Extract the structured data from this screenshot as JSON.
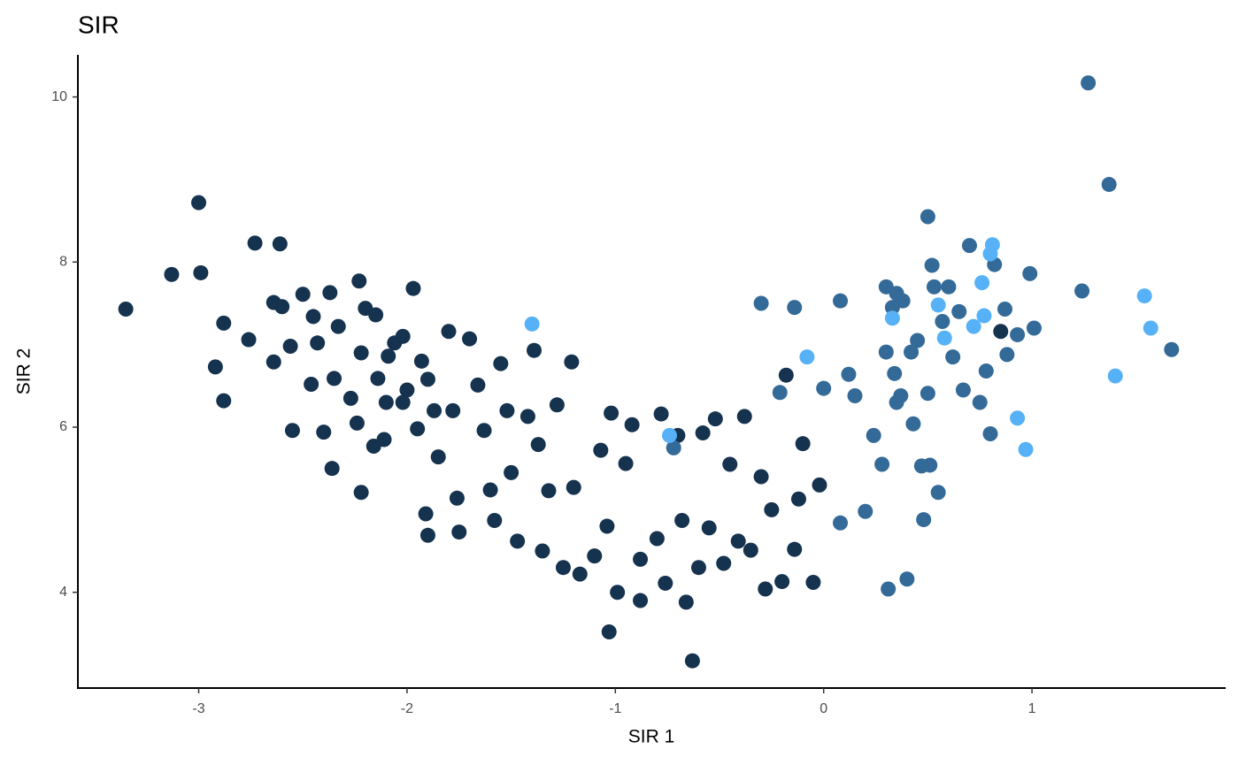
{
  "chart_data": {
    "type": "scatter",
    "title": "SIR",
    "x_label": "SIR 1",
    "y_label": "SIR 2",
    "xlim": [
      -3.58,
      1.93
    ],
    "ylim": [
      2.84,
      10.51
    ],
    "xticks": [
      -3,
      -2,
      -1,
      0,
      1
    ],
    "yticks": [
      4,
      6,
      8,
      10
    ],
    "grid": false,
    "series": [
      {
        "color": "#15324f",
        "x": [
          -3.35,
          -3.13,
          -3.0,
          -2.99,
          -2.92,
          -2.88,
          -2.88,
          -2.76,
          -2.73,
          -2.61,
          -2.64,
          -2.6,
          -2.64,
          -2.56,
          -2.55,
          -2.5,
          -2.45,
          -2.46,
          -2.43,
          -2.37,
          -2.35,
          -2.33,
          -2.4,
          -2.36,
          -2.27,
          -2.23,
          -2.22,
          -2.24,
          -2.2,
          -2.22,
          -2.15,
          -2.14,
          -2.16,
          -2.1,
          -2.09,
          -2.11,
          -2.06,
          -2.02,
          -2.0,
          -2.02,
          -1.97,
          -1.93,
          -1.95,
          -1.9,
          -1.91,
          -1.9,
          -1.87,
          -1.85,
          -1.8,
          -1.78,
          -1.76,
          -1.75,
          -1.7,
          -1.66,
          -1.63,
          -1.6,
          -1.58,
          -1.55,
          -1.52,
          -1.5,
          -1.47,
          -1.42,
          -1.39,
          -1.37,
          -1.35,
          -1.32,
          -1.28,
          -1.25,
          -1.21,
          -1.2,
          -1.17,
          -1.1,
          -1.07,
          -1.04,
          -1.03,
          -1.02,
          -0.99,
          -0.95,
          -0.92,
          -0.88,
          -0.88,
          -0.8,
          -0.78,
          -0.76,
          -0.7,
          -0.68,
          -0.66,
          -0.63,
          -0.6,
          -0.58,
          -0.55,
          -0.52,
          -0.48,
          -0.45,
          -0.41,
          -0.38,
          -0.35,
          -0.3,
          -0.28,
          -0.25,
          -0.2,
          -0.18,
          -0.14,
          -0.12,
          -0.1,
          -0.05,
          -0.02,
          0.85
        ],
        "y": [
          7.43,
          7.85,
          8.72,
          7.87,
          6.73,
          7.26,
          6.32,
          7.06,
          8.23,
          8.22,
          7.51,
          7.46,
          6.79,
          6.98,
          5.96,
          7.61,
          7.34,
          6.52,
          7.02,
          7.63,
          6.59,
          7.22,
          5.94,
          5.5,
          6.35,
          7.77,
          6.9,
          6.05,
          7.44,
          5.21,
          7.36,
          6.59,
          5.77,
          6.3,
          6.86,
          5.85,
          7.02,
          7.1,
          6.45,
          6.3,
          7.68,
          6.8,
          5.98,
          6.58,
          4.95,
          4.69,
          6.2,
          5.64,
          7.16,
          6.2,
          5.14,
          4.73,
          7.07,
          6.51,
          5.96,
          5.24,
          4.87,
          6.77,
          6.2,
          5.45,
          4.62,
          6.13,
          6.93,
          5.79,
          4.5,
          5.23,
          6.27,
          4.3,
          6.79,
          5.27,
          4.22,
          4.44,
          5.72,
          4.8,
          3.52,
          6.17,
          4.0,
          5.56,
          6.03,
          4.4,
          3.9,
          4.65,
          6.16,
          4.11,
          5.9,
          4.87,
          3.88,
          3.17,
          4.3,
          5.93,
          4.78,
          6.1,
          4.35,
          5.55,
          4.62,
          6.13,
          4.51,
          5.4,
          4.04,
          5.0,
          4.13,
          6.63,
          4.52,
          5.13,
          5.8,
          4.12,
          5.3,
          7.16
        ]
      },
      {
        "color": "#336a98",
        "x": [
          -0.72,
          -0.3,
          -0.14,
          -0.21,
          0.0,
          0.08,
          0.08,
          0.12,
          0.15,
          0.2,
          0.24,
          0.28,
          0.3,
          0.3,
          0.31,
          0.33,
          0.34,
          0.35,
          0.37,
          0.38,
          0.4,
          0.42,
          0.43,
          0.45,
          0.47,
          0.48,
          0.5,
          0.5,
          0.51,
          0.52,
          0.53,
          0.55,
          0.57,
          0.6,
          0.62,
          0.65,
          0.67,
          0.7,
          0.75,
          0.78,
          0.8,
          0.82,
          0.87,
          0.88,
          0.93,
          0.99,
          1.01,
          1.24,
          1.27,
          1.37,
          1.67,
          0.35
        ],
        "y": [
          5.75,
          7.5,
          7.45,
          6.42,
          6.47,
          7.53,
          4.84,
          6.64,
          6.38,
          4.98,
          5.9,
          5.55,
          6.91,
          7.7,
          4.04,
          7.45,
          6.65,
          7.62,
          6.38,
          7.53,
          4.16,
          6.91,
          6.04,
          7.05,
          5.53,
          4.88,
          8.55,
          6.41,
          5.54,
          7.96,
          7.7,
          5.21,
          7.28,
          7.7,
          6.85,
          7.4,
          6.45,
          8.2,
          6.3,
          6.68,
          5.92,
          7.97,
          7.43,
          6.88,
          7.12,
          7.86,
          7.2,
          7.65,
          10.17,
          8.94,
          6.94,
          6.3
        ]
      },
      {
        "color": "#56b1f7",
        "x": [
          -1.4,
          -0.74,
          -0.08,
          0.55,
          0.72,
          0.76,
          0.77,
          0.8,
          0.81,
          0.93,
          0.97,
          1.4,
          1.54,
          1.57,
          0.58,
          0.33
        ],
        "y": [
          7.25,
          5.9,
          6.85,
          7.48,
          7.22,
          7.75,
          7.35,
          8.1,
          8.21,
          6.11,
          5.73,
          6.62,
          7.59,
          7.2,
          7.08,
          7.32
        ]
      }
    ]
  }
}
